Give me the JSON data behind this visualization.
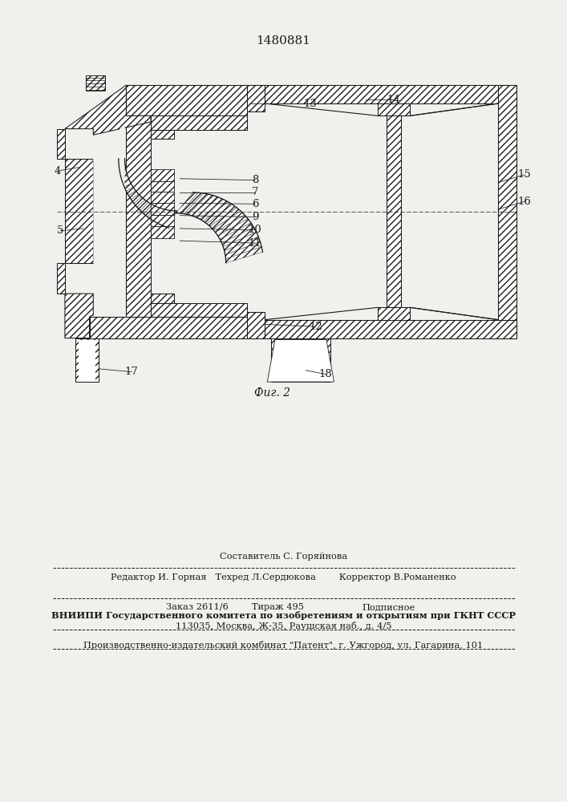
{
  "patent_number": "1480881",
  "fig_caption": "Фиг. 2",
  "bg_color": "#f2f0ec",
  "line_color": "#1a1a1a",
  "footer": {
    "line1": "Составитель С. Горяйнова",
    "line2": "Редактор И. Горная   Техред Л.Сердюкова        Корректор В.Романенко",
    "line3_left": "Заказ 2611/6        Тираж 495",
    "line3_right": "Подписное",
    "line4": "ВНИИПИ Государственного комитета по изобретениям и открытиям при ГКНТ СССР",
    "line5": "113035, Москва, Ж-35, Раушская наб., д. 4/5",
    "line6": "Производственно-издательский комбинат \"Патент\", г. Ужгород, ул. Гагарина, 101"
  }
}
